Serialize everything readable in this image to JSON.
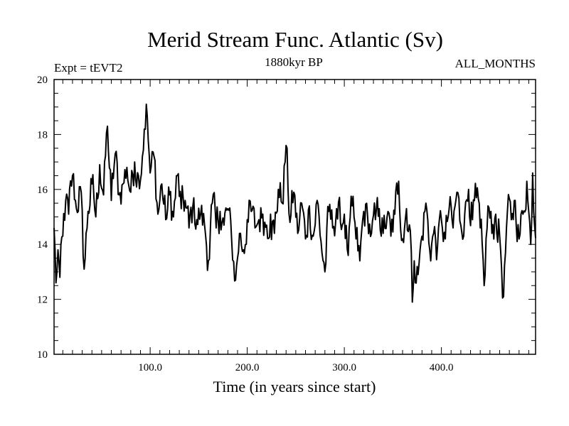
{
  "chart_data": {
    "type": "line",
    "title": "Merid Stream Func. Atlantic (Sv)",
    "subtitle_left": "Expt = tEVT2",
    "subtitle_center": "1880kyr BP",
    "subtitle_right": "ALL_MONTHS",
    "xlabel": "Time (in years since start)",
    "ylabel": "",
    "xlim": [
      1,
      497
    ],
    "ylim": [
      10,
      20
    ],
    "x_ticks": [
      100,
      200,
      300,
      400
    ],
    "x_tick_labels": [
      "100.0",
      "200.0",
      "300.0",
      "400.0"
    ],
    "y_ticks": [
      10,
      12,
      14,
      16,
      18,
      20
    ],
    "y_tick_labels": [
      "10",
      "12",
      "14",
      "16",
      "18",
      "20"
    ],
    "grid": false,
    "line_color": "#000000",
    "series": [
      {
        "name": "Merid Stream Func. Atlantic",
        "x": [
          1,
          3,
          5,
          7,
          10,
          13,
          16,
          20,
          24,
          28,
          32,
          36,
          40,
          44,
          48,
          52,
          56,
          60,
          64,
          68,
          72,
          76,
          80,
          84,
          88,
          92,
          94,
          96,
          98,
          100,
          104,
          108,
          112,
          116,
          120,
          124,
          128,
          132,
          136,
          140,
          144,
          148,
          152,
          156,
          160,
          164,
          168,
          172,
          176,
          180,
          184,
          188,
          192,
          196,
          200,
          204,
          208,
          212,
          216,
          220,
          224,
          228,
          232,
          236,
          240,
          244,
          248,
          252,
          256,
          260,
          264,
          268,
          272,
          276,
          280,
          284,
          288,
          292,
          296,
          300,
          304,
          308,
          312,
          316,
          320,
          324,
          328,
          332,
          336,
          340,
          344,
          348,
          352,
          356,
          360,
          364,
          368,
          370,
          372,
          376,
          380,
          384,
          388,
          392,
          396,
          400,
          404,
          408,
          412,
          416,
          420,
          424,
          428,
          432,
          436,
          440,
          444,
          448,
          452,
          456,
          460,
          464,
          468,
          472,
          476,
          480,
          484,
          488,
          492,
          494,
          496
        ],
        "y": [
          14.6,
          12.6,
          13.8,
          12.8,
          14.3,
          15.6,
          15.1,
          16.5,
          15.3,
          16.1,
          13.1,
          15.2,
          16.2,
          15.0,
          16.9,
          15.8,
          18.3,
          15.6,
          17.3,
          15.8,
          16.2,
          16.8,
          15.9,
          17.0,
          16.5,
          17.2,
          18.2,
          19.1,
          17.8,
          16.6,
          17.2,
          15.1,
          16.2,
          14.9,
          15.8,
          15.0,
          16.5,
          15.3,
          15.6,
          14.6,
          15.4,
          14.9,
          15.1,
          14.7,
          13.4,
          15.5,
          14.6,
          15.2,
          14.7,
          15.3,
          14.1,
          12.7,
          14.4,
          13.8,
          14.9,
          15.2,
          14.6,
          14.9,
          15.1,
          14.7,
          15.1,
          14.4,
          16.0,
          15.5,
          17.6,
          14.8,
          15.9,
          14.4,
          15.5,
          14.2,
          15.4,
          14.3,
          15.6,
          14.1,
          13.0,
          15.2,
          14.6,
          15.3,
          14.8,
          15.1,
          13.6,
          15.4,
          14.2,
          13.4,
          15.2,
          15.0,
          14.4,
          14.9,
          15.3,
          14.4,
          15.0,
          14.3,
          15.1,
          16.3,
          14.2,
          15.3,
          14.5,
          11.9,
          13.4,
          12.9,
          14.3,
          15.5,
          13.8,
          14.4,
          13.9,
          14.9,
          14.2,
          15.3,
          14.6,
          15.9,
          14.7,
          15.1,
          16.0,
          14.9,
          15.7,
          14.6,
          12.5,
          15.4,
          14.4,
          15.1,
          14.3,
          12.1,
          15.2,
          14.9,
          15.6,
          14.2,
          15.1,
          16.3,
          14.0,
          16.6,
          14.7
        ]
      }
    ]
  }
}
